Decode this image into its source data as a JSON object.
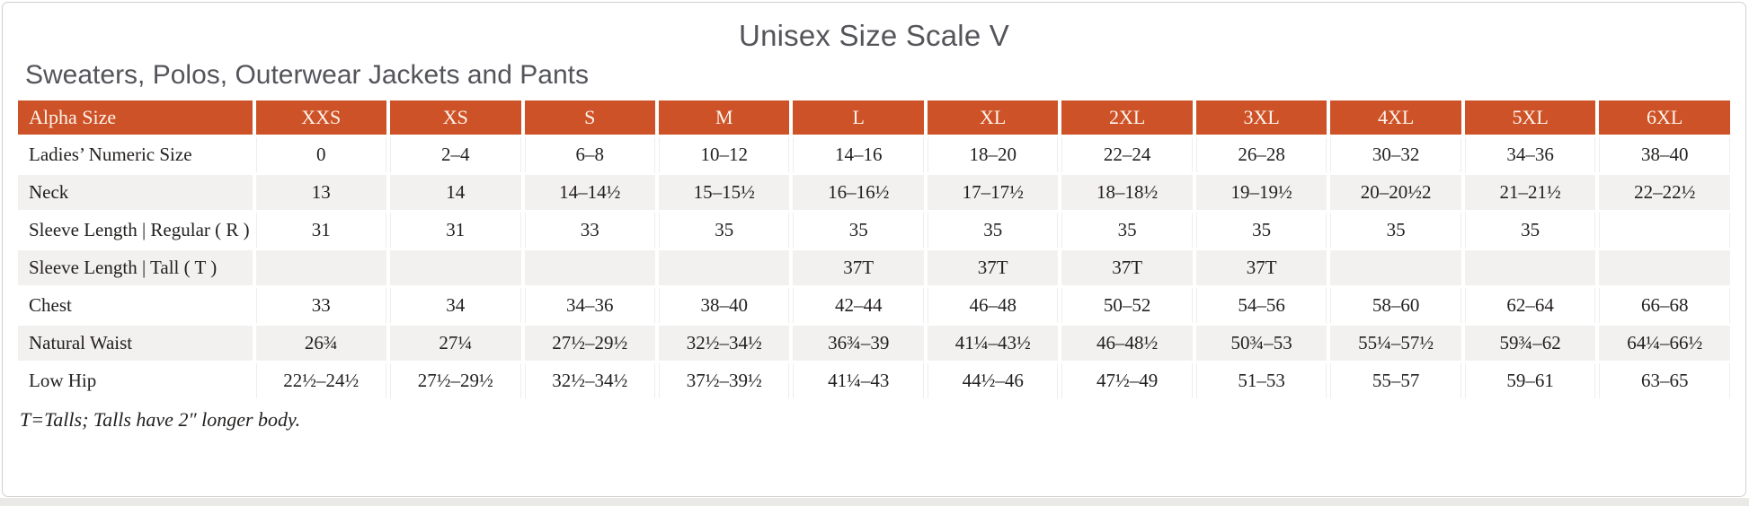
{
  "header": {
    "title": "Unisex Size Scale V",
    "subtitle": "Sweaters, Polos, Outerwear Jackets and Pants"
  },
  "table": {
    "columns": [
      "Alpha Size",
      "XXS",
      "XS",
      "S",
      "M",
      "L",
      "XL",
      "2XL",
      "3XL",
      "4XL",
      "5XL",
      "6XL"
    ],
    "rows": [
      {
        "label": "Ladies’ Numeric Size",
        "values": [
          "0",
          "2–4",
          "6–8",
          "10–12",
          "14–16",
          "18–20",
          "22–24",
          "26–28",
          "30–32",
          "34–36",
          "38–40"
        ]
      },
      {
        "label": "Neck",
        "values": [
          "13",
          "14",
          "14–14½",
          "15–15½",
          "16–16½",
          "17–17½",
          "18–18½",
          "19–19½",
          "20–20½2",
          "21–21½",
          "22–22½"
        ]
      },
      {
        "label": "Sleeve Length | Regular ( R )",
        "values": [
          "31",
          "31",
          "33",
          "35",
          "35",
          "35",
          "35",
          "35",
          "35",
          "35",
          ""
        ]
      },
      {
        "label": "Sleeve Length | Tall ( T )",
        "values": [
          "",
          "",
          "",
          "",
          "37T",
          "37T",
          "37T",
          "37T",
          "",
          "",
          ""
        ]
      },
      {
        "label": "Chest",
        "values": [
          "33",
          "34",
          "34–36",
          "38–40",
          "42–44",
          "46–48",
          "50–52",
          "54–56",
          "58–60",
          "62–64",
          "66–68"
        ]
      },
      {
        "label": "Natural Waist",
        "values": [
          "26¾",
          "27¼",
          "27½–29½",
          "32½–34½",
          "36¾–39",
          "41¼–43½",
          "46–48½",
          "50¾–53",
          "55¼–57½",
          "59¾–62",
          "64¼–66½"
        ]
      },
      {
        "label": "Low Hip",
        "values": [
          "22½–24½",
          "27½–29½",
          "32½–34½",
          "37½–39½",
          "41¼–43",
          "44½–46",
          "47½–49",
          "51–53",
          "55–57",
          "59–61",
          "63–65"
        ]
      }
    ]
  },
  "footnote": {
    "text": "T=Talls; Talls have 2″ longer body."
  },
  "colors": {
    "accent_orange": "#ce5227",
    "row_shade": "#f3f1ef",
    "header_text": "#fcf5ed",
    "title_gray": "#54555a",
    "body_text": "#232120"
  }
}
